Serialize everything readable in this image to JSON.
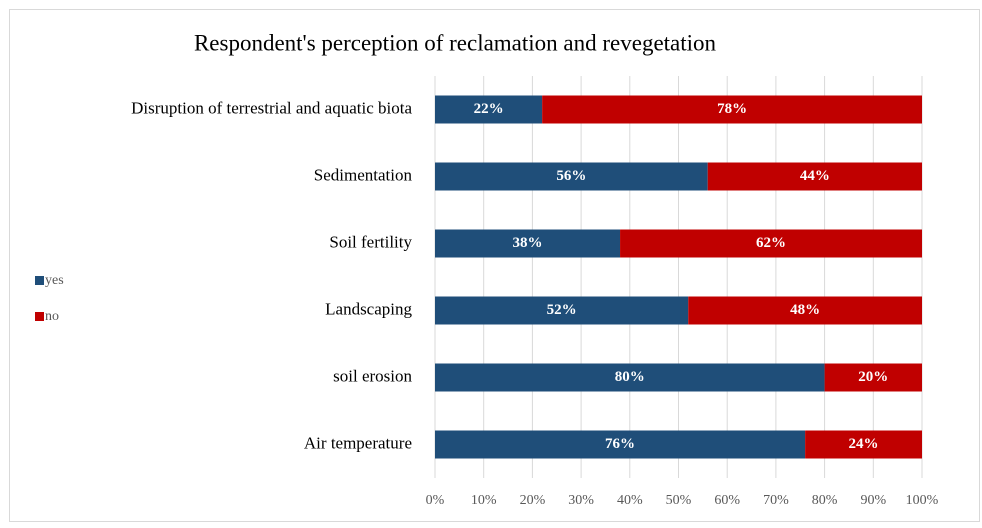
{
  "chart_data": {
    "type": "stacked_barh",
    "title": "Respondent's perception of reclamation and revegetation",
    "categories": [
      "Disruption of terrestrial and aquatic biota",
      "Sedimentation",
      "Soil fertility",
      "Landscaping",
      "soil erosion",
      "Air temperature"
    ],
    "series": [
      {
        "name": "yes",
        "color": "#1f4e79",
        "values": [
          22,
          56,
          38,
          52,
          80,
          76
        ],
        "value_labels": [
          "22%",
          "56%",
          "38%",
          "52%",
          "80%",
          "76%"
        ]
      },
      {
        "name": "no",
        "color": "#c00000",
        "values": [
          78,
          44,
          62,
          48,
          20,
          24
        ],
        "value_labels": [
          "78%",
          "44%",
          "62%",
          "48%",
          "20%",
          "24%"
        ]
      }
    ],
    "xlim": [
      0,
      100
    ],
    "xticks": [
      {
        "value": 0,
        "label": "0%"
      },
      {
        "value": 10,
        "label": "10%"
      },
      {
        "value": 20,
        "label": "20%"
      },
      {
        "value": 30,
        "label": "30%"
      },
      {
        "value": 40,
        "label": "40%"
      },
      {
        "value": 50,
        "label": "50%"
      },
      {
        "value": 60,
        "label": "60%"
      },
      {
        "value": 70,
        "label": "70%"
      },
      {
        "value": 80,
        "label": "80%"
      },
      {
        "value": 90,
        "label": "90%"
      },
      {
        "value": 100,
        "label": "100%"
      }
    ],
    "grid": true,
    "legend": "left"
  }
}
